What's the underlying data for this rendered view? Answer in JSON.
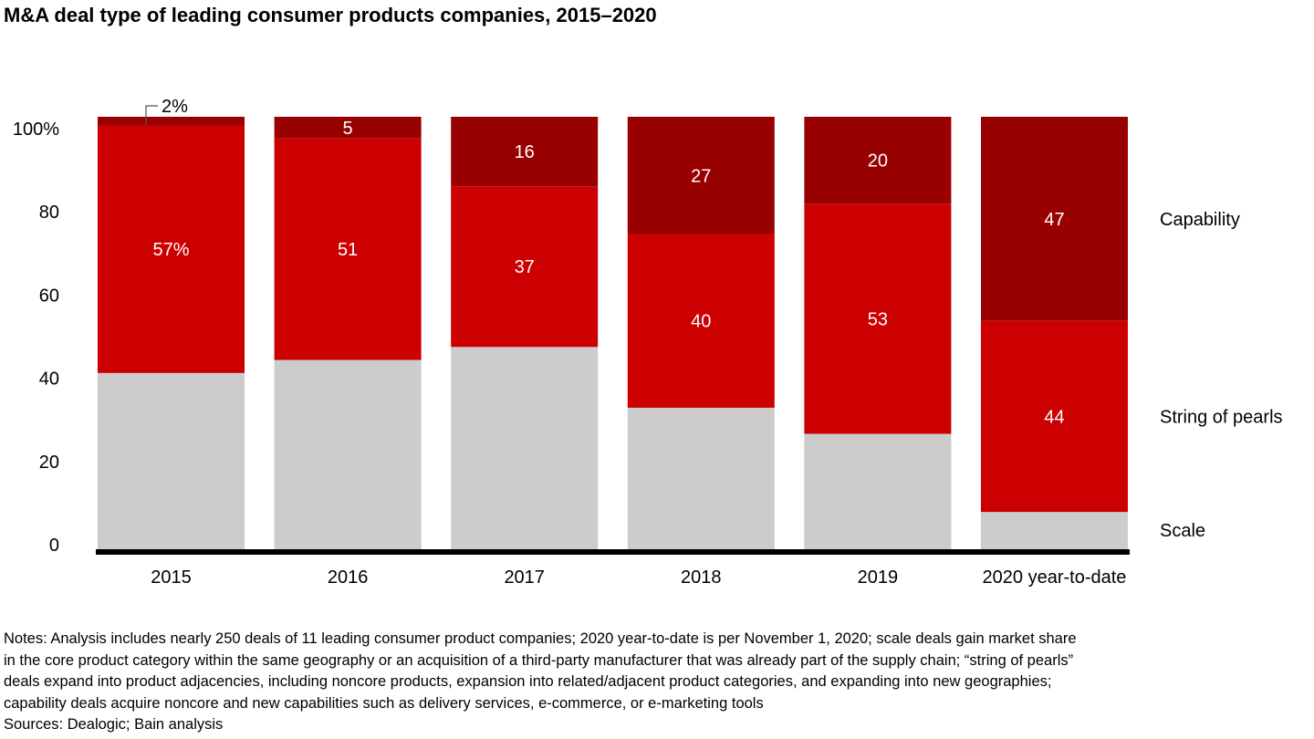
{
  "chart_data": {
    "type": "bar",
    "stacked": true,
    "title": "M&A deal type of leading consumer products companies, 2015–2020",
    "categories": [
      "2015",
      "2016",
      "2017",
      "2018",
      "2019",
      "2020 year-to-date"
    ],
    "series": [
      {
        "name": "Scale",
        "values": [
          41,
          44,
          47,
          33,
          27,
          9
        ],
        "color": "#cccccc",
        "labels": [
          "",
          "",
          "",
          "",
          "",
          ""
        ]
      },
      {
        "name": "String of pearls",
        "values": [
          57,
          51,
          37,
          40,
          53,
          44
        ],
        "color": "#cc0000",
        "labels": [
          "57%",
          "51",
          "37",
          "40",
          "53",
          "44"
        ]
      },
      {
        "name": "Capability",
        "values": [
          2,
          5,
          16,
          27,
          20,
          47
        ],
        "color": "#990000",
        "labels": [
          "2%",
          "5",
          "16",
          "27",
          "20",
          "47"
        ]
      }
    ],
    "ylim": [
      0,
      100
    ],
    "yticks": [
      {
        "value": 0,
        "label": "0"
      },
      {
        "value": 20,
        "label": "20"
      },
      {
        "value": 40,
        "label": "40"
      },
      {
        "value": 60,
        "label": "60"
      },
      {
        "value": 80,
        "label": "80"
      },
      {
        "value": 100,
        "label": "100%"
      }
    ],
    "grid": false,
    "legend": "right, inline labels"
  },
  "notes": [
    "Notes: Analysis includes nearly 250 deals of 11 leading consumer product companies; 2020 year-to-date is per November 1, 2020; scale deals gain market share",
    "in the core product category within the same geography or an acquisition of a third-party manufacturer that was already part of the supply chain; “string of pearls”",
    "deals expand into product adjacencies, including noncore products, expansion into related/adjacent product categories, and expanding into new geographies;",
    "capability deals acquire noncore and new capabilities such as delivery services, e-commerce, or e-marketing tools"
  ],
  "sources": "Sources: Dealogic; Bain analysis"
}
